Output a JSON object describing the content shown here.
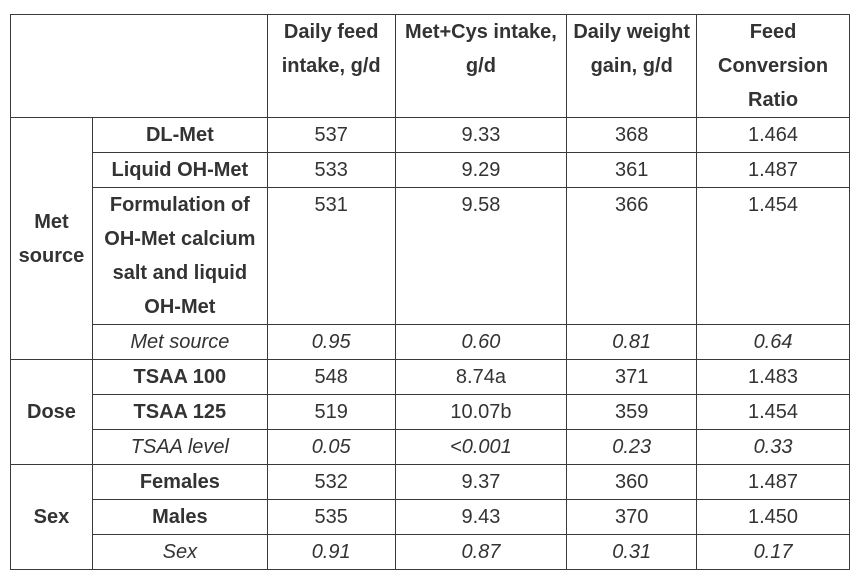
{
  "header": {
    "corner": "",
    "columns": [
      "Daily feed intake, g/d",
      "Met+Cys intake, g/d",
      "Daily weight gain, g/d",
      "Feed Conversion Ratio"
    ]
  },
  "groups": [
    {
      "label": "Met source",
      "rows": [
        {
          "label": "DL-Met",
          "values": [
            "537",
            "9.33",
            "368",
            "1.464"
          ]
        },
        {
          "label": "Liquid OH-Met",
          "values": [
            "533",
            "9.29",
            "361",
            "1.487"
          ]
        },
        {
          "label": "Formulation of OH-Met calcium salt and liquid OH-Met",
          "values": [
            "531",
            "9.58",
            "366",
            "1.454"
          ]
        },
        {
          "label": "Met source",
          "values": [
            "0.95",
            "0.60",
            "0.81",
            "0.64"
          ],
          "pvalue": true
        }
      ]
    },
    {
      "label": "Dose",
      "rows": [
        {
          "label": "TSAA 100",
          "values": [
            "548",
            "8.74a",
            "371",
            "1.483"
          ]
        },
        {
          "label": "TSAA 125",
          "values": [
            "519",
            "10.07b",
            "359",
            "1.454"
          ]
        },
        {
          "label": "TSAA level",
          "values": [
            "0.05",
            "<0.001",
            "0.23",
            "0.33"
          ],
          "pvalue": true
        }
      ]
    },
    {
      "label": "Sex",
      "rows": [
        {
          "label": "Females",
          "values": [
            "532",
            "9.37",
            "360",
            "1.487"
          ]
        },
        {
          "label": "Males",
          "values": [
            "535",
            "9.43",
            "370",
            "1.450"
          ]
        },
        {
          "label": "Sex",
          "values": [
            "0.91",
            "0.87",
            "0.31",
            "0.17"
          ],
          "pvalue": true
        }
      ]
    }
  ]
}
